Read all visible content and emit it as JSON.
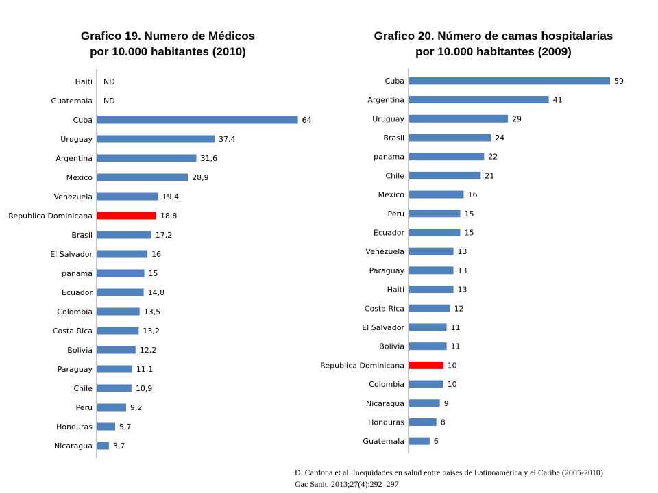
{
  "chart_data": [
    {
      "type": "bar",
      "orientation": "horizontal",
      "title": "Grafico 19. Numero de Médicos por 10.000 habitantes (2010)",
      "title_lines": [
        "Grafico 19. Numero de Médicos",
        "por 10.000 habitantes (2010)"
      ],
      "categories": [
        "Haiti",
        "Guatemala",
        "Cuba",
        "Uruguay",
        "Argentina",
        "Mexico",
        "Venezuela",
        "Republica Dominicana",
        "Brasil",
        "El Salvador",
        "panama",
        "Ecuador",
        "Colombia",
        "Costa Rica",
        "Bolivia",
        "Paraguay",
        "Chile",
        "Peru",
        "Honduras",
        "Nicaragua"
      ],
      "values": [
        null,
        null,
        64,
        37.4,
        31.6,
        28.9,
        19.4,
        18.8,
        17.2,
        16,
        15,
        14.8,
        13.5,
        13.2,
        12.2,
        11.1,
        10.9,
        9.2,
        5.7,
        3.7
      ],
      "labels": [
        "ND",
        "ND",
        "64",
        "37,4",
        "31,6",
        "28,9",
        "19,4",
        "18,8",
        "17,2",
        "16",
        "15",
        "14,8",
        "13,5",
        "13,2",
        "12,2",
        "11,1",
        "10,9",
        "9,2",
        "5,7",
        "3,7"
      ],
      "xlim": [
        0,
        70
      ],
      "highlight": "Republica Dominicana",
      "bar_color": "#4f81bd",
      "highlight_color": "#ff0000",
      "grid": false,
      "legend": "none"
    },
    {
      "type": "bar",
      "orientation": "horizontal",
      "title": "Grafico 20. Número de camas hospitalarias por 10.000 habitantes (2009)",
      "title_lines": [
        "Grafico 20. Número de camas hospitalarias",
        "por 10.000 habitantes (2009)"
      ],
      "categories": [
        "Cuba",
        "Argentina",
        "Uruguay",
        "Brasil",
        "panama",
        "Chile",
        "Mexico",
        "Peru",
        "Ecuador",
        "Venezuela",
        "Paraguay",
        "Haiti",
        "Costa Rica",
        "El Salvador",
        "Bolivia",
        "Republica Dominicana",
        "Colombia",
        "Nicaragua",
        "Honduras",
        "Guatemala"
      ],
      "values": [
        59,
        41,
        29,
        24,
        22,
        21,
        16,
        15,
        15,
        13,
        13,
        13,
        12,
        11,
        11,
        10,
        10,
        9,
        8,
        6
      ],
      "labels": [
        "59",
        "41",
        "29",
        "24",
        "22",
        "21",
        "16",
        "15",
        "15",
        "13",
        "13",
        "13",
        "12",
        "11",
        "11",
        "10",
        "10",
        "9",
        "8",
        "6"
      ],
      "xlim": [
        0,
        60
      ],
      "highlight": "Republica Dominicana",
      "bar_color": "#4f81bd",
      "highlight_color": "#ff0000",
      "grid": false,
      "legend": "none"
    }
  ],
  "source_lines": [
    "D. Cardona et al. Inequidades en salud entre países de Latinoamérica y el Caribe (2005-2010)",
    "Gac Sanit. 2013;27(4):292–297"
  ]
}
